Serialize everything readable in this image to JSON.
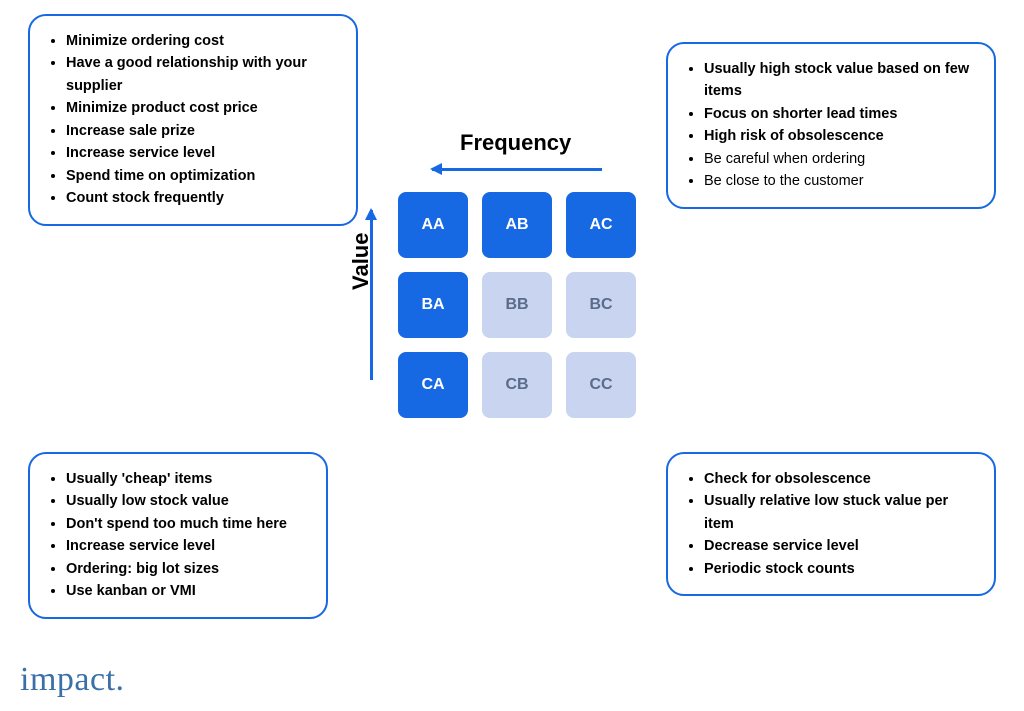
{
  "colors": {
    "accent": "#1668e3",
    "accent_light": "#c8d4f0",
    "border": "#1668e3",
    "text": "#000000",
    "muted_text": "#6b7280",
    "logo": "#3b6fa8",
    "background": "#ffffff"
  },
  "axes": {
    "x_label": "Frequency",
    "y_label": "Value",
    "x_direction": "left",
    "y_direction": "up",
    "label_fontsize": 22,
    "label_weight": 800,
    "arrow_color": "#1668e3",
    "arrow_thickness": 2.5
  },
  "matrix": {
    "rows": 3,
    "cols": 3,
    "cell_size": {
      "w": 70,
      "h": 66
    },
    "gap": 14,
    "cell_radius": 8,
    "cell_fontsize": 16,
    "dark_fill": "#1668e3",
    "dark_text": "#ffffff",
    "light_fill": "#c8d4f0",
    "light_text": "#5a6b8c",
    "cells": [
      {
        "label": "AA",
        "style": "dark"
      },
      {
        "label": "AB",
        "style": "dark"
      },
      {
        "label": "AC",
        "style": "dark"
      },
      {
        "label": "BA",
        "style": "dark"
      },
      {
        "label": "BB",
        "style": "light"
      },
      {
        "label": "BC",
        "style": "light"
      },
      {
        "label": "CA",
        "style": "dark"
      },
      {
        "label": "CB",
        "style": "light"
      },
      {
        "label": "CC",
        "style": "light"
      }
    ]
  },
  "boxes": {
    "top_left": {
      "items": [
        {
          "text": "Minimize ordering cost",
          "bold": true
        },
        {
          "text": "Have a good relationship with your supplier",
          "bold": true
        },
        {
          "text": "Minimize product cost price",
          "bold": true
        },
        {
          "text": "Increase sale prize",
          "bold": true
        },
        {
          "text": "Increase service level",
          "bold": true
        },
        {
          "text": "Spend time on optimization",
          "bold": true
        },
        {
          "text": "Count stock frequently",
          "bold": true
        }
      ]
    },
    "top_right": {
      "items": [
        {
          "text": "Usually high stock value based on few items",
          "bold": true
        },
        {
          "text": "Focus on shorter lead times",
          "bold": true
        },
        {
          "text": "High risk of obsolescence",
          "bold": true
        },
        {
          "text": "Be careful when ordering",
          "bold": false
        },
        {
          "text": "Be close to the customer",
          "bold": false
        }
      ]
    },
    "bottom_left": {
      "items": [
        {
          "text": "Usually 'cheap' items",
          "bold": true
        },
        {
          "text": "Usually low stock value",
          "bold": true
        },
        {
          "text": "Don't spend too much time here",
          "bold": true
        },
        {
          "text": "Increase service level",
          "bold": true
        },
        {
          "text": "Ordering: big lot sizes",
          "bold": true
        },
        {
          "text": "Use kanban or VMI",
          "bold": true
        }
      ]
    },
    "bottom_right": {
      "items": [
        {
          "text": "Check for obsolescence",
          "bold": true
        },
        {
          "text": "Usually relative low stuck value per item",
          "bold": true
        },
        {
          "text": "Decrease service level",
          "bold": true
        },
        {
          "text": "Periodic stock counts",
          "bold": true
        }
      ]
    },
    "border_radius": 18,
    "border_width": 2,
    "border_color": "#1668e3",
    "item_fontsize": 14.5,
    "item_lineheight": 1.55
  },
  "logo": {
    "text": "impact.",
    "fontsize": 34,
    "font_family": "serif",
    "color": "#3b6fa8"
  }
}
